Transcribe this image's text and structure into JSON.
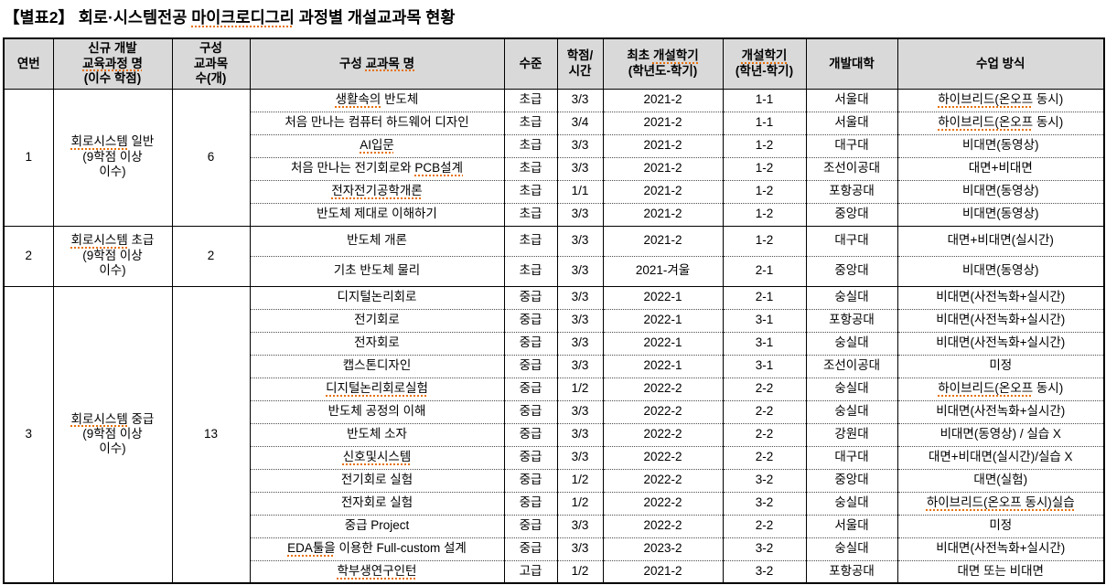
{
  "title": [
    {
      "t": "【별표2】 회로·시스템전공 ",
      "sq": false
    },
    {
      "t": "마이크로디그리",
      "sq": true
    },
    {
      "t": " 과정별 개설교과목 현황",
      "sq": false
    }
  ],
  "table": {
    "headers": {
      "no": "연번",
      "course": [
        {
          "t": "신규 개발\n",
          "sq": false
        },
        {
          "t": "교육과정 명",
          "sq": true
        },
        {
          "t": "\n(이수 학점)",
          "sq": false
        }
      ],
      "count": "구성\n교과목\n수(개)",
      "subject": [
        {
          "t": "구성 ",
          "sq": false
        },
        {
          "t": "교과목 명",
          "sq": true
        }
      ],
      "level": "수준",
      "credit": "학점/\n시간",
      "first_term": [
        {
          "t": "최초 ",
          "sq": false
        },
        {
          "t": "개설학기",
          "sq": true
        },
        {
          "t": "\n(학년도-학기)",
          "sq": false
        }
      ],
      "term": [
        {
          "t": "개설학기",
          "sq": true
        },
        {
          "t": "\n(학년-학기)",
          "sq": false
        }
      ],
      "univ": "개발대학",
      "method": "수업 방식"
    },
    "groups": [
      {
        "no": "1",
        "course": [
          {
            "t": "회로시스템",
            "sq": true
          },
          {
            "t": " 일반\n(9학점 이상\n이수)",
            "sq": false
          }
        ],
        "count": "6",
        "rows": [
          {
            "name": [
              {
                "t": "생활속의",
                "sq": true
              },
              {
                "t": " 반도체",
                "sq": false
              }
            ],
            "level": "초급",
            "credit": "3/3",
            "first": "2021-2",
            "term": "1-1",
            "univ": "서울대",
            "method": [
              {
                "t": "하이브리드(온오프",
                "sq": true
              },
              {
                "t": " 동시)",
                "sq": false
              }
            ]
          },
          {
            "name": [
              {
                "t": "처음 만나는 컴퓨터 하드웨어 디자인",
                "sq": false
              }
            ],
            "level": "초급",
            "credit": "3/4",
            "first": "2021-2",
            "term": "1-1",
            "univ": "서울대",
            "method": [
              {
                "t": "하이브리드(온오프",
                "sq": true
              },
              {
                "t": " 동시)",
                "sq": false
              }
            ]
          },
          {
            "name": [
              {
                "t": "AI입문",
                "sq": true
              }
            ],
            "level": "초급",
            "credit": "3/3",
            "first": "2021-2",
            "term": "1-2",
            "univ": "대구대",
            "method": [
              {
                "t": "비대면(동영상)",
                "sq": false
              }
            ]
          },
          {
            "name": [
              {
                "t": "처음 만나는 전기회로와 ",
                "sq": false
              },
              {
                "t": "PCB설계",
                "sq": true
              }
            ],
            "level": "초급",
            "credit": "3/3",
            "first": "2021-2",
            "term": "1-2",
            "univ": "조선이공대",
            "method": [
              {
                "t": "대면+비대면",
                "sq": false
              }
            ]
          },
          {
            "name": [
              {
                "t": "전자전기공학개론",
                "sq": true
              }
            ],
            "level": "초급",
            "credit": "1/1",
            "first": "2021-2",
            "term": "1-2",
            "univ": "포항공대",
            "method": [
              {
                "t": "비대면(동영상)",
                "sq": false
              }
            ]
          },
          {
            "name": [
              {
                "t": "반도체 제대로 이해하기",
                "sq": false
              }
            ],
            "level": "초급",
            "credit": "3/3",
            "first": "2021-2",
            "term": "1-2",
            "univ": "중앙대",
            "method": [
              {
                "t": "비대면(동영상)",
                "sq": false
              }
            ]
          }
        ]
      },
      {
        "no": "2",
        "course": [
          {
            "t": "회로시스템",
            "sq": true
          },
          {
            "t": " 초급\n(9학점 이상\n이수)",
            "sq": false
          }
        ],
        "count": "2",
        "rows": [
          {
            "name": [
              {
                "t": "반도체 개론",
                "sq": false
              }
            ],
            "level": "초급",
            "credit": "3/3",
            "first": "2021-2",
            "term": "1-2",
            "univ": "대구대",
            "method": [
              {
                "t": "대면+비대면(실시간)",
                "sq": false
              }
            ]
          },
          {
            "name": [
              {
                "t": "기초 반도체 물리",
                "sq": false
              }
            ],
            "level": "초급",
            "credit": "3/3",
            "first": "2021-겨울",
            "term": "2-1",
            "univ": "중앙대",
            "method": [
              {
                "t": "비대면(동영상)",
                "sq": false
              }
            ]
          }
        ]
      },
      {
        "no": "3",
        "course": [
          {
            "t": "회로시스템",
            "sq": true
          },
          {
            "t": " 중급\n(9학점 이상\n이수)",
            "sq": false
          }
        ],
        "count": "13",
        "rows": [
          {
            "name": [
              {
                "t": "디지털논리회로",
                "sq": false
              }
            ],
            "level": "중급",
            "credit": "3/3",
            "first": "2022-1",
            "term": "2-1",
            "univ": "숭실대",
            "method": [
              {
                "t": "비대면(사전녹화+실시간)",
                "sq": false
              }
            ]
          },
          {
            "name": [
              {
                "t": "전기회로",
                "sq": false
              }
            ],
            "level": "중급",
            "credit": "3/3",
            "first": "2022-1",
            "term": "3-1",
            "univ": "포항공대",
            "method": [
              {
                "t": "비대면(사전녹화+실시간)",
                "sq": false
              }
            ]
          },
          {
            "name": [
              {
                "t": "전자회로",
                "sq": false
              }
            ],
            "level": "중급",
            "credit": "3/3",
            "first": "2022-1",
            "term": "3-1",
            "univ": "숭실대",
            "method": [
              {
                "t": "비대면(사전녹화+실시간)",
                "sq": false
              }
            ]
          },
          {
            "name": [
              {
                "t": "캡스톤디자인",
                "sq": false
              }
            ],
            "level": "중급",
            "credit": "3/3",
            "first": "2022-1",
            "term": "3-1",
            "univ": "조선이공대",
            "method": [
              {
                "t": "미정",
                "sq": false
              }
            ]
          },
          {
            "name": [
              {
                "t": "디지털논리회로실험",
                "sq": true
              }
            ],
            "level": "중급",
            "credit": "1/2",
            "first": "2022-2",
            "term": "2-2",
            "univ": "숭실대",
            "method": [
              {
                "t": "하이브리드(온오프",
                "sq": true
              },
              {
                "t": " 동시)",
                "sq": false
              }
            ]
          },
          {
            "name": [
              {
                "t": "반도체 공정의 이해",
                "sq": false
              }
            ],
            "level": "중급",
            "credit": "3/3",
            "first": "2022-2",
            "term": "2-2",
            "univ": "숭실대",
            "method": [
              {
                "t": "비대면(사전녹화+실시간)",
                "sq": false
              }
            ]
          },
          {
            "name": [
              {
                "t": "반도체 소자",
                "sq": false
              }
            ],
            "level": "중급",
            "credit": "3/3",
            "first": "2022-2",
            "term": "2-2",
            "univ": "강원대",
            "method": [
              {
                "t": "비대면(동영상) / 실습 X",
                "sq": false
              }
            ]
          },
          {
            "name": [
              {
                "t": "신호및시스템",
                "sq": true
              }
            ],
            "level": "중급",
            "credit": "3/3",
            "first": "2022-2",
            "term": "2-2",
            "univ": "대구대",
            "method": [
              {
                "t": "대면+비대면(실시간)/실습 X",
                "sq": false
              }
            ]
          },
          {
            "name": [
              {
                "t": "전기회로 실험",
                "sq": false
              }
            ],
            "level": "중급",
            "credit": "1/2",
            "first": "2022-2",
            "term": "3-2",
            "univ": "중앙대",
            "method": [
              {
                "t": "대면(실험)",
                "sq": false
              }
            ]
          },
          {
            "name": [
              {
                "t": "전자회로 실험",
                "sq": false
              }
            ],
            "level": "중급",
            "credit": "1/2",
            "first": "2022-2",
            "term": "3-2",
            "univ": "숭실대",
            "method": [
              {
                "t": "하이브리드(온오프 동시)실습",
                "sq": true
              }
            ]
          },
          {
            "name": [
              {
                "t": "중급 Project",
                "sq": false
              }
            ],
            "level": "중급",
            "credit": "3/3",
            "first": "2022-2",
            "term": "2-2",
            "univ": "서울대",
            "method": [
              {
                "t": "미정",
                "sq": false
              }
            ]
          },
          {
            "name": [
              {
                "t": "EDA툴을",
                "sq": true
              },
              {
                "t": " 이용한 Full-custom 설계",
                "sq": false
              }
            ],
            "level": "중급",
            "credit": "3/3",
            "first": "2023-2",
            "term": "3-2",
            "univ": "숭실대",
            "method": [
              {
                "t": "비대면(사전녹화+실시간)",
                "sq": false
              }
            ]
          },
          {
            "name": [
              {
                "t": "학부생연구인턴",
                "sq": true
              }
            ],
            "level": "고급",
            "credit": "1/2",
            "first": "2021-2",
            "term": "3-2",
            "univ": "포항공대",
            "method": [
              {
                "t": "대면 또는 비대면",
                "sq": false
              }
            ]
          }
        ]
      }
    ]
  }
}
